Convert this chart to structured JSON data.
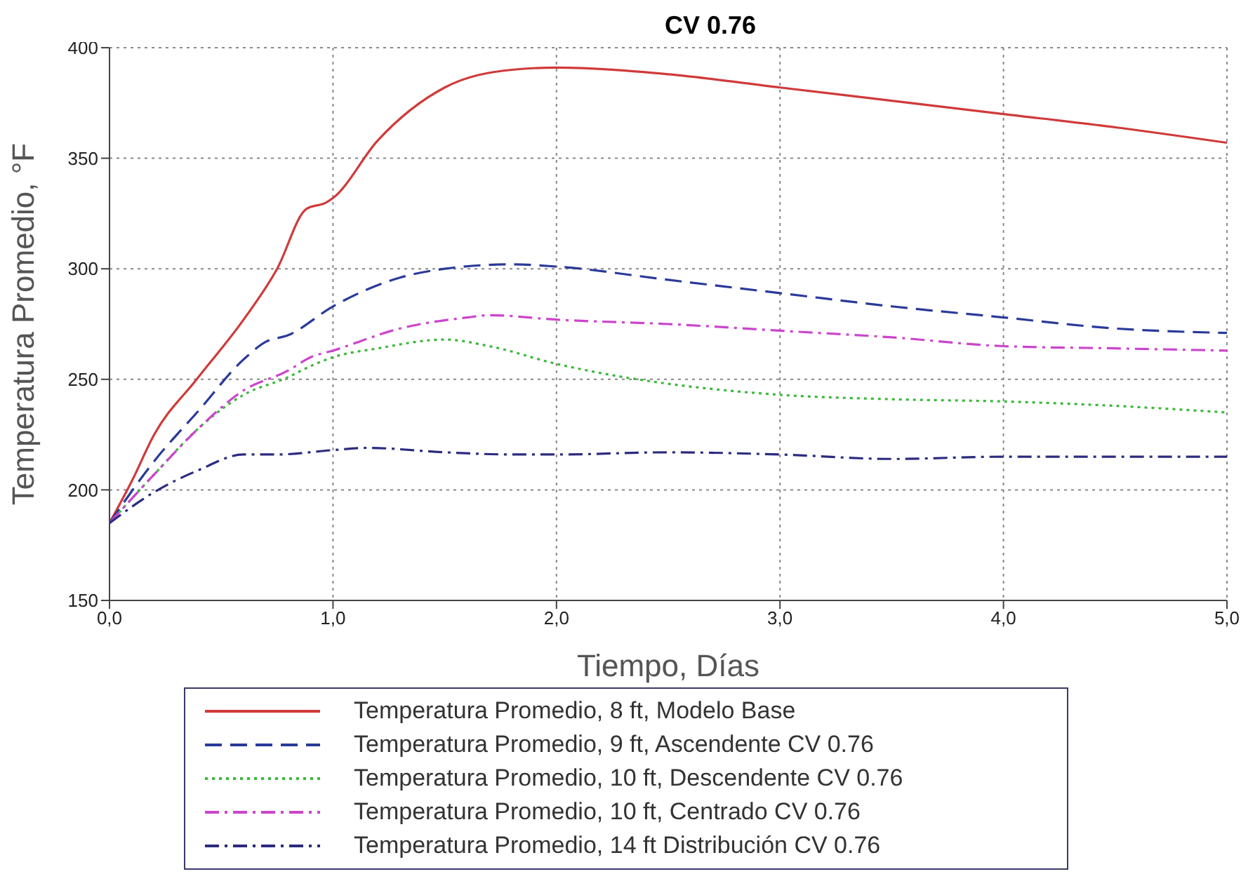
{
  "chart_data": {
    "type": "line",
    "title": "CV 0.76",
    "xlabel": "Tiempo, Días",
    "ylabel": "Temperatura Promedio, °F",
    "xlim": [
      0,
      5
    ],
    "xticks": [
      {
        "value": 0,
        "label": "0,0"
      },
      {
        "value": 1,
        "label": "1,0"
      },
      {
        "value": 2,
        "label": "2,0"
      },
      {
        "value": 3,
        "label": "3,0"
      },
      {
        "value": 4,
        "label": "4,0"
      },
      {
        "value": 5,
        "label": "5,0"
      }
    ],
    "ylim": [
      150,
      400
    ],
    "yticks": [
      150,
      200,
      250,
      300,
      350,
      400
    ],
    "grid": true,
    "legend": "bottom",
    "series": [
      {
        "name": "Temperatura Promedio, 8 ft, Modelo Base",
        "color": "#d03a3a",
        "line_style": "solid",
        "x": [
          0,
          0.1,
          0.2,
          0.39,
          0.6,
          0.75,
          0.88,
          0.97,
          1.0,
          1.2,
          1.5,
          1.8,
          2.0,
          2.5,
          3.0,
          3.5,
          4.0,
          4.5,
          5.0
        ],
        "values": [
          185,
          204,
          225,
          250,
          277,
          300,
          327,
          330,
          332,
          358,
          382,
          390,
          391,
          388,
          382,
          376,
          370,
          364,
          357
        ]
      },
      {
        "name": "Temperatura Promedio, 9 ft, Ascendente CV 0.76",
        "color": "#2a3a9a",
        "line_style": "dashed",
        "x": [
          0,
          0.2,
          0.4,
          0.6,
          0.7,
          0.8,
          1.0,
          1.3,
          1.5,
          1.8,
          2.0,
          2.5,
          3.0,
          3.5,
          4.0,
          4.5,
          5.0
        ],
        "values": [
          185,
          213,
          236,
          259,
          267,
          270,
          283,
          296,
          300,
          302,
          301,
          295,
          289,
          283,
          278,
          273,
          271
        ]
      },
      {
        "name": "Temperatura Promedio, 10 ft, Descendente CV 0.76",
        "color": "#3cb83c",
        "line_style": "dotted",
        "x": [
          0,
          0.2,
          0.4,
          0.6,
          0.8,
          0.9,
          1.0,
          1.2,
          1.5,
          1.7,
          2.0,
          2.3,
          2.5,
          3.0,
          3.5,
          4.0,
          4.5,
          5.0
        ],
        "values": [
          185,
          207,
          228,
          243,
          251,
          256,
          260,
          264,
          268,
          265,
          257,
          251,
          248,
          243,
          241,
          240,
          238,
          235
        ]
      },
      {
        "name": "Temperatura Promedio, 10 ft, Centrado CV 0.76",
        "color": "#cc44cc",
        "line_style": "dashdot",
        "x": [
          0,
          0.2,
          0.4,
          0.6,
          0.8,
          0.9,
          1.0,
          1.3,
          1.6,
          1.7,
          2.0,
          2.5,
          3.0,
          3.5,
          4.0,
          4.5,
          5.0
        ],
        "values": [
          185,
          207,
          228,
          245,
          254,
          260,
          263,
          273,
          278,
          279,
          277,
          275,
          272,
          269,
          265,
          264,
          263
        ]
      },
      {
        "name": "Temperatura Promedio, 14 ft Distribución CV 0.76",
        "color": "#2b2b80",
        "line_style": "dashdot",
        "x": [
          0,
          0.2,
          0.4,
          0.6,
          0.75,
          1.0,
          1.15,
          1.5,
          1.8,
          2.0,
          2.5,
          3.0,
          3.5,
          4.0,
          5.0
        ],
        "values": [
          185,
          199,
          209,
          216,
          216,
          218,
          219,
          217,
          216,
          216,
          217,
          216,
          214,
          215,
          215
        ]
      }
    ]
  }
}
